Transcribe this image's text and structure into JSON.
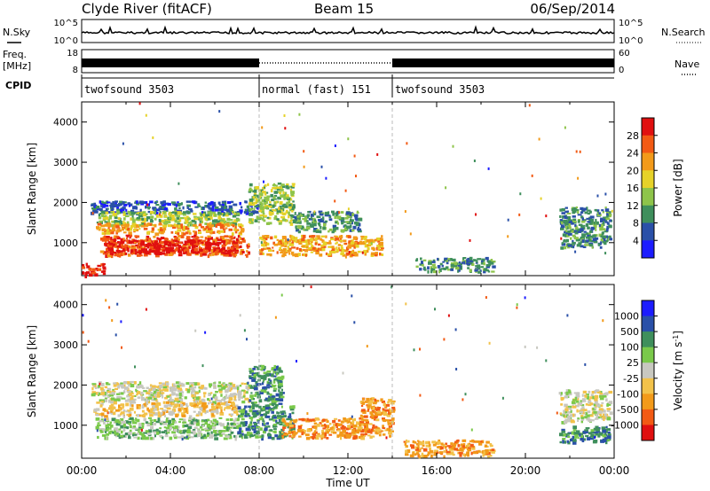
{
  "header": {
    "site": "Clyde River (fitACF)",
    "beam": "Beam 15",
    "date": "06/Sep/2014"
  },
  "left_labels": {
    "nsky": "N.Sky",
    "freq": "Freq.",
    "freq_unit": "[MHz]",
    "cpid": "CPID"
  },
  "right_labels": {
    "nsearch": "N.Search",
    "nave": "Nave"
  },
  "noise_panel": {
    "left_ticks": [
      "10^5",
      "10^0"
    ],
    "right_ticks": [
      "10^5",
      "10^0"
    ]
  },
  "freq_panel": {
    "left_ticks": [
      "18",
      "8"
    ],
    "right_ticks": [
      "60",
      "0"
    ]
  },
  "cpid_segments": [
    {
      "label": "twofsound 3503",
      "start_hour": 0,
      "end_hour": 8
    },
    {
      "label": "normal (fast) 151",
      "start_hour": 8,
      "end_hour": 14
    },
    {
      "label": "twofsound 3503",
      "start_hour": 14,
      "end_hour": 24
    }
  ],
  "colors": {
    "power_scale": [
      "#1c1cff",
      "#2a50a8",
      "#3f8f5c",
      "#8ec44a",
      "#e6d229",
      "#f29a1a",
      "#f25a14",
      "#e01010"
    ],
    "velocity_scale": [
      "#e01010",
      "#f25a14",
      "#f29a1a",
      "#f2c24a",
      "#c8c8c0",
      "#7ac94a",
      "#3f8f5c",
      "#2a50a8",
      "#1c1cff"
    ]
  },
  "chart_data": [
    {
      "type": "heatmap",
      "title": "Power",
      "ylabel": "Slant Range [km]",
      "xlabel": "",
      "ylim": [
        180,
        4500
      ],
      "xlim": [
        0,
        24
      ],
      "yticks": [
        "1000",
        "2000",
        "3000",
        "4000"
      ],
      "colorbar": {
        "label": "Power [dB]",
        "ticks": [
          "4",
          "8",
          "12",
          "16",
          "20",
          "24",
          "28"
        ],
        "range": [
          0,
          32
        ]
      },
      "bands": [
        {
          "x": [
            0.4,
            8.0
          ],
          "y": [
            1750,
            2050
          ],
          "level": 1
        },
        {
          "x": [
            0.6,
            7.0
          ],
          "y": [
            1450,
            1800
          ],
          "level": 3
        },
        {
          "x": [
            0.6,
            7.2
          ],
          "y": [
            1250,
            1500
          ],
          "level": 5
        },
        {
          "x": [
            0.8,
            7.5
          ],
          "y": [
            700,
            1200
          ],
          "level": 6
        },
        {
          "x": [
            1.0,
            7.0
          ],
          "y": [
            750,
            1100
          ],
          "level": 7
        },
        {
          "x": [
            0.0,
            1.0
          ],
          "y": [
            200,
            500
          ],
          "level": 7
        },
        {
          "x": [
            7.5,
            9.5
          ],
          "y": [
            1500,
            2500
          ],
          "level": 3
        },
        {
          "x": [
            8.0,
            13.5
          ],
          "y": [
            700,
            1200
          ],
          "level": 5
        },
        {
          "x": [
            9.5,
            12.5
          ],
          "y": [
            1300,
            1800
          ],
          "level": 2
        },
        {
          "x": [
            15.0,
            18.5
          ],
          "y": [
            300,
            650
          ],
          "level": 2
        },
        {
          "x": [
            21.5,
            23.8
          ],
          "y": [
            900,
            1900
          ],
          "level": 2
        }
      ]
    },
    {
      "type": "heatmap",
      "title": "Velocity",
      "ylabel": "Slant Range [km]",
      "xlabel": "Time UT",
      "ylim": [
        180,
        4500
      ],
      "xlim": [
        0,
        24
      ],
      "yticks": [
        "1000",
        "2000",
        "3000",
        "4000"
      ],
      "xticks": [
        "00:00",
        "04:00",
        "08:00",
        "12:00",
        "16:00",
        "20:00",
        "00:00"
      ],
      "colorbar": {
        "label": "Velocity [m s",
        "label_sup": "-1",
        "label_end": "]",
        "ticks": [
          "1000",
          "500",
          "100",
          "25",
          "-25",
          "-100",
          "-500",
          "-1000"
        ]
      },
      "bands": [
        {
          "x": [
            0.4,
            7.5
          ],
          "y": [
            1600,
            2100
          ],
          "level": 4
        },
        {
          "x": [
            0.5,
            7.0
          ],
          "y": [
            1250,
            1600
          ],
          "level": 3
        },
        {
          "x": [
            0.6,
            7.0
          ],
          "y": [
            700,
            1200
          ],
          "level": 5
        },
        {
          "x": [
            7.0,
            9.5
          ],
          "y": [
            700,
            1500
          ],
          "level": 6
        },
        {
          "x": [
            7.5,
            9.0
          ],
          "y": [
            1500,
            2500
          ],
          "level": 6
        },
        {
          "x": [
            9.0,
            14.0
          ],
          "y": [
            700,
            1200
          ],
          "level": 2
        },
        {
          "x": [
            12.5,
            14.0
          ],
          "y": [
            1200,
            1700
          ],
          "level": 2
        },
        {
          "x": [
            14.5,
            18.5
          ],
          "y": [
            250,
            650
          ],
          "level": 2
        },
        {
          "x": [
            21.5,
            23.8
          ],
          "y": [
            1100,
            1900
          ],
          "level": 4
        },
        {
          "x": [
            21.5,
            23.8
          ],
          "y": [
            600,
            1000
          ],
          "level": 6
        }
      ]
    }
  ]
}
